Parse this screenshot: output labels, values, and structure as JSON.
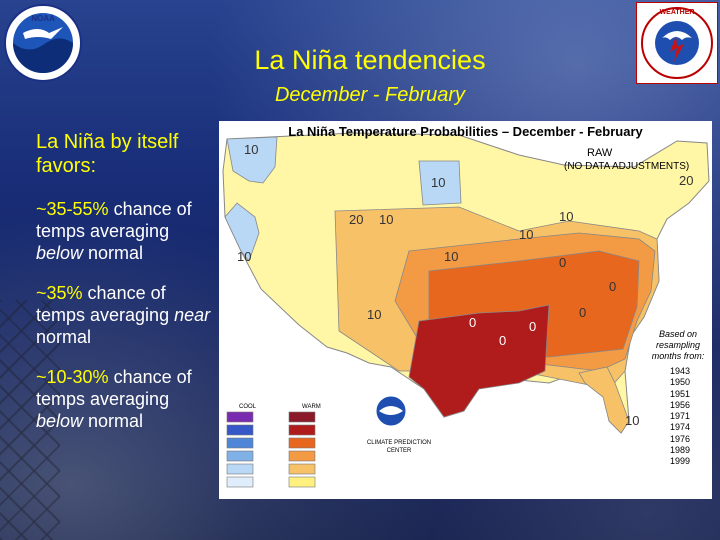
{
  "slide": {
    "title": "La Niña tendencies",
    "subtitle": "December - February"
  },
  "left_text": {
    "heading": "La Niña by itself favors:",
    "items": [
      {
        "pct": "~35-55%",
        "rest": " chance of temps averaging ",
        "emph": "below",
        "tail": " normal"
      },
      {
        "pct": "~35%",
        "rest": " chance of temps averaging ",
        "emph": "near",
        "tail": " normal"
      },
      {
        "pct": "~10-30%",
        "rest": " chance of temps averaging ",
        "emph": "below",
        "tail": " normal"
      }
    ]
  },
  "logos": {
    "noaa": "NOAA",
    "nws": "NATIONAL WEATHER SERVICE"
  },
  "map": {
    "title": "La Niña Temperature Probabilities – December - February",
    "raw": "RAW",
    "no_data": "(NO DATA ADJUSTMENTS)",
    "based_on": "Based on resampling months from:",
    "years": [
      "1943",
      "1950",
      "1951",
      "1956",
      "1971",
      "1974",
      "1976",
      "1989",
      "1999"
    ],
    "cool_label": "COOL",
    "warm_label": "WARM",
    "cpc_name": "CLIMATE PREDICTION CENTER"
  },
  "colors": {
    "title_yellow": "#ffff00",
    "text_white": "#ffffff",
    "warm_dark": "#b01c1c",
    "warm_mid": "#e8671f",
    "warm_light": "#f39a45",
    "warm_pale": "#f7c167",
    "yellow_low": "#fff080",
    "cool_light": "#b8d8f6",
    "cool_mid": "#5e8fd8"
  },
  "icons": {
    "noaa_logo": "noaa-logo-icon",
    "nws_logo": "nws-logo-icon",
    "cpc_logo": "cpc-logo-icon"
  }
}
